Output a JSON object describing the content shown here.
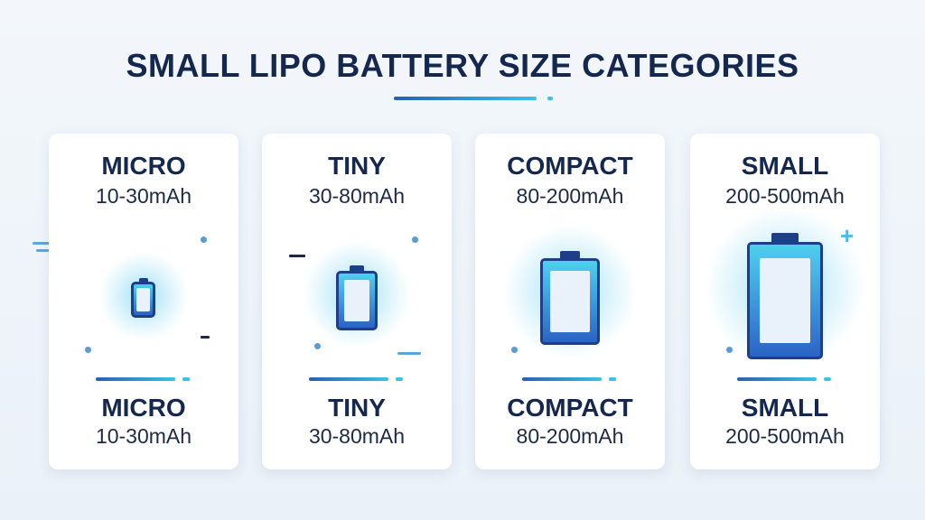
{
  "title": "SMALL LIPO BATTERY SIZE CATEGORIES",
  "colors": {
    "heading": "#14284f",
    "battery_outline": "#1d3f8a",
    "battery_top": "#4fd0ee",
    "battery_bottom": "#2c63c4",
    "accent_line": "#39c4e6"
  },
  "cards": [
    {
      "name": "MICRO",
      "range": "10-30mAh",
      "icon": "battery-icon"
    },
    {
      "name": "TINY",
      "range": "30-80mAh",
      "icon": "battery-icon"
    },
    {
      "name": "COMPACT",
      "range": "80-200mAh",
      "icon": "battery-icon"
    },
    {
      "name": "SMALL",
      "range": "200-500mAh",
      "icon": "battery-icon"
    }
  ]
}
